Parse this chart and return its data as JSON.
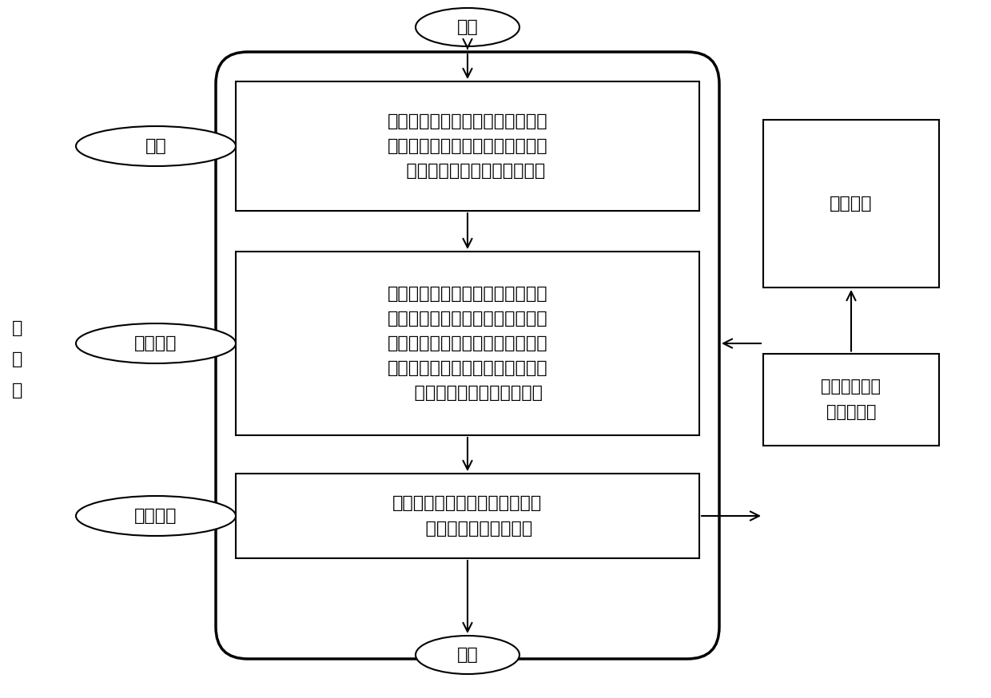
{
  "bg_color": "#ffffff",
  "text_color": "#000000",
  "title_start": "开始",
  "title_end": "结束",
  "box1_text": "初始化，设置相关参数，包括发动\n机燃油消耗、电机效率特性数据、\n   外特性数据等，确定约束条件",
  "box2_text": "可行域内离散发动机转矩，划分网\n格，并求解相应的电机转矩，计算\n相应的发动机燃油消耗，计算离散\n点对应的发动机、电机功率，进而\n    获得相应的等效燃油消耗量",
  "box3_text": "求解最小等效燃油消耗量对应的\n    优化发动机、电机转矩",
  "input_label": "输\n入\n量",
  "input1": "转速",
  "input2": "需求转矩",
  "input3": "等效因子",
  "right_box1_text": "整车模型",
  "right_box2_text": "优化的电机、\n发动机转矩",
  "font_size_main": 16,
  "font_size_label": 16,
  "font_size_io": 16,
  "font_size_small": 15,
  "lw_outer": 2.5,
  "lw_inner": 1.5,
  "lw_arrow": 1.5
}
